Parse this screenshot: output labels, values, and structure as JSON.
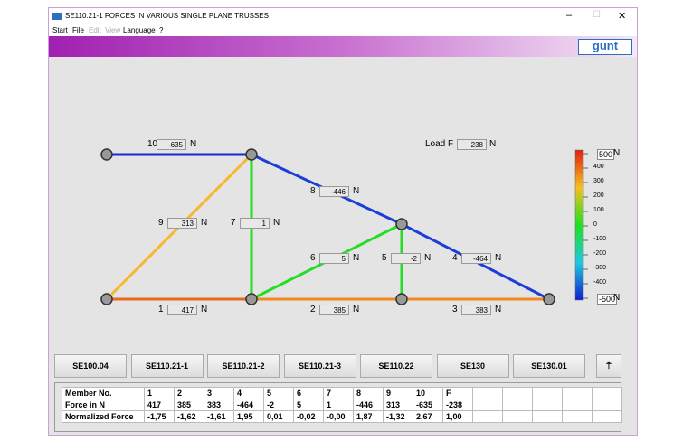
{
  "window": {
    "title": "SE110.21-1 FORCES IN VARIOUS SINGLE PLANE TRUSSES",
    "menu": [
      "Start",
      "File",
      "Edit",
      "View",
      "Language",
      "?"
    ],
    "logo": "gunt"
  },
  "truss": {
    "unit": "N",
    "load": {
      "label": "Load F",
      "value": "-238"
    },
    "members": [
      {
        "no": "1",
        "value": "417",
        "color": "#e86a1c"
      },
      {
        "no": "2",
        "value": "385",
        "color": "#f08a20"
      },
      {
        "no": "3",
        "value": "383",
        "color": "#f08a20"
      },
      {
        "no": "4",
        "value": "-464",
        "color": "#1a3ed8"
      },
      {
        "no": "5",
        "value": "-2",
        "color": "#22dd22"
      },
      {
        "no": "6",
        "value": "5",
        "color": "#22dd22"
      },
      {
        "no": "7",
        "value": "1",
        "color": "#22dd22"
      },
      {
        "no": "8",
        "value": "-446",
        "color": "#1a3ed8"
      },
      {
        "no": "9",
        "value": "313",
        "color": "#f5b830"
      },
      {
        "no": "10",
        "value": "-635",
        "color": "#1a2ad0"
      }
    ]
  },
  "scale": {
    "ticks": [
      "500",
      "400",
      "300",
      "200",
      "100",
      "0",
      "-100",
      "-200",
      "-300",
      "-400",
      "-500"
    ],
    "unit": "N"
  },
  "buttons": [
    "SE100.04",
    "SE110.21-1",
    "SE110.21-2",
    "SE110.21-3",
    "SE110.22",
    "SE130",
    "SE130.01"
  ],
  "table": {
    "rows": [
      [
        "Member No.",
        "1",
        "2",
        "3",
        "4",
        "5",
        "6",
        "7",
        "8",
        "9",
        "10",
        "F"
      ],
      [
        "Force in N",
        "417",
        "385",
        "383",
        "-464",
        "-2",
        "5",
        "1",
        "-446",
        "313",
        "-635",
        "-238"
      ],
      [
        "Normalized Force",
        "-1,75",
        "-1,62",
        "-1,61",
        "1,95",
        "0,01",
        "-0,02",
        "-0,00",
        "1,87",
        "-1,32",
        "2,67",
        "1,00"
      ]
    ]
  }
}
